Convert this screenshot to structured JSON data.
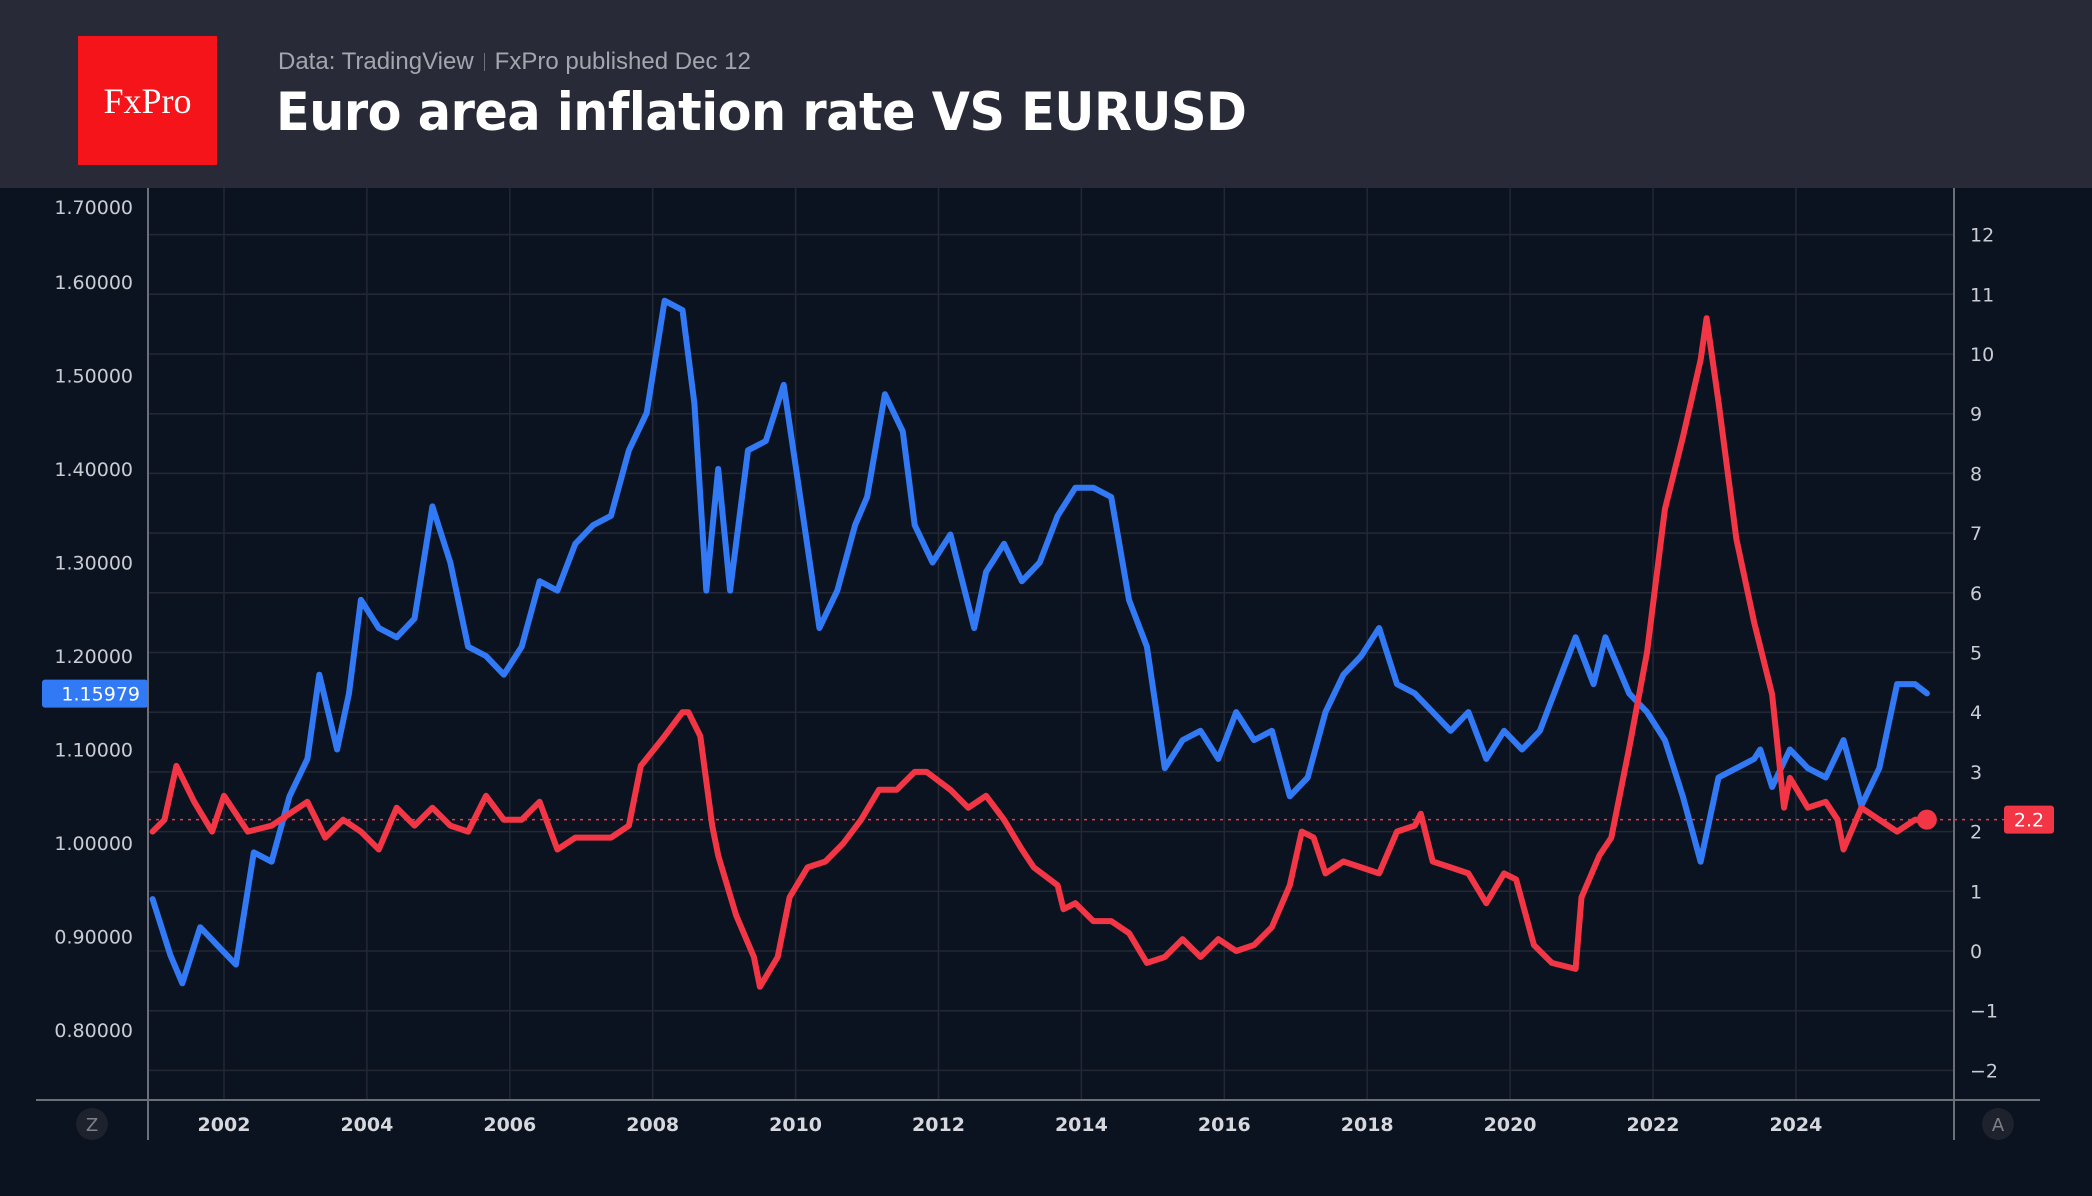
{
  "header": {
    "logo_text": "FxPro",
    "source": "Data: TradingView",
    "published": "FxPro published Dec 12",
    "title": "Euro area inflation rate VS EURUSD"
  },
  "controls": {
    "left_scale_button": "Z",
    "right_scale_button": "A"
  },
  "colors": {
    "eurusd": "#3179f5",
    "inflation": "#f23645",
    "background": "#0c1320",
    "header": "#282b37",
    "logo": "#f5141a"
  },
  "chart_data": {
    "type": "line",
    "title": "Euro area inflation rate VS EURUSD",
    "x_ticks": [
      "2002",
      "2004",
      "2006",
      "2008",
      "2010",
      "2012",
      "2014",
      "2016",
      "2018",
      "2020",
      "2022",
      "2024"
    ],
    "left_axis": {
      "ticks": [
        "0.80000",
        "0.90000",
        "1.00000",
        "1.10000",
        "1.20000",
        "1.30000",
        "1.40000",
        "1.50000",
        "1.60000",
        "1.70000"
      ],
      "range": [
        0.73,
        1.73
      ]
    },
    "right_axis": {
      "ticks": [
        "-2",
        "-1",
        "0",
        "1",
        "2",
        "3",
        "4",
        "5",
        "6",
        "7",
        "8",
        "9",
        "10",
        "11",
        "12"
      ],
      "range": [
        -2.5,
        12.8
      ]
    },
    "grid": true,
    "last_values": {
      "eurusd": "1.15979",
      "inflation": "2.2"
    },
    "series": [
      {
        "key": "eurusd",
        "axis": "left",
        "color": "#3179f5",
        "points": [
          [
            "2001-01",
            0.94
          ],
          [
            "2001-04",
            0.88
          ],
          [
            "2001-06",
            0.85
          ],
          [
            "2001-09",
            0.91
          ],
          [
            "2001-12",
            0.89
          ],
          [
            "2002-03",
            0.87
          ],
          [
            "2002-06",
            0.99
          ],
          [
            "2002-09",
            0.98
          ],
          [
            "2002-12",
            1.05
          ],
          [
            "2003-03",
            1.09
          ],
          [
            "2003-05",
            1.18
          ],
          [
            "2003-08",
            1.1
          ],
          [
            "2003-10",
            1.16
          ],
          [
            "2003-12",
            1.26
          ],
          [
            "2004-03",
            1.23
          ],
          [
            "2004-06",
            1.22
          ],
          [
            "2004-09",
            1.24
          ],
          [
            "2004-12",
            1.36
          ],
          [
            "2005-03",
            1.3
          ],
          [
            "2005-06",
            1.21
          ],
          [
            "2005-09",
            1.2
          ],
          [
            "2005-12",
            1.18
          ],
          [
            "2006-03",
            1.21
          ],
          [
            "2006-06",
            1.28
          ],
          [
            "2006-09",
            1.27
          ],
          [
            "2006-12",
            1.32
          ],
          [
            "2007-03",
            1.34
          ],
          [
            "2007-06",
            1.35
          ],
          [
            "2007-09",
            1.42
          ],
          [
            "2007-12",
            1.46
          ],
          [
            "2008-03",
            1.58
          ],
          [
            "2008-06",
            1.57
          ],
          [
            "2008-08",
            1.47
          ],
          [
            "2008-10",
            1.27
          ],
          [
            "2008-12",
            1.4
          ],
          [
            "2009-02",
            1.27
          ],
          [
            "2009-05",
            1.42
          ],
          [
            "2009-08",
            1.43
          ],
          [
            "2009-11",
            1.49
          ],
          [
            "2010-02",
            1.36
          ],
          [
            "2010-05",
            1.23
          ],
          [
            "2010-08",
            1.27
          ],
          [
            "2010-11",
            1.34
          ],
          [
            "2011-01",
            1.37
          ],
          [
            "2011-04",
            1.48
          ],
          [
            "2011-07",
            1.44
          ],
          [
            "2011-09",
            1.34
          ],
          [
            "2011-12",
            1.3
          ],
          [
            "2012-03",
            1.33
          ],
          [
            "2012-07",
            1.23
          ],
          [
            "2012-09",
            1.29
          ],
          [
            "2012-12",
            1.32
          ],
          [
            "2013-03",
            1.28
          ],
          [
            "2013-06",
            1.3
          ],
          [
            "2013-09",
            1.35
          ],
          [
            "2013-12",
            1.38
          ],
          [
            "2014-03",
            1.38
          ],
          [
            "2014-06",
            1.37
          ],
          [
            "2014-09",
            1.26
          ],
          [
            "2014-12",
            1.21
          ],
          [
            "2015-03",
            1.08
          ],
          [
            "2015-06",
            1.11
          ],
          [
            "2015-09",
            1.12
          ],
          [
            "2015-12",
            1.09
          ],
          [
            "2016-03",
            1.14
          ],
          [
            "2016-06",
            1.11
          ],
          [
            "2016-09",
            1.12
          ],
          [
            "2016-12",
            1.05
          ],
          [
            "2017-03",
            1.07
          ],
          [
            "2017-06",
            1.14
          ],
          [
            "2017-09",
            1.18
          ],
          [
            "2017-12",
            1.2
          ],
          [
            "2018-03",
            1.23
          ],
          [
            "2018-06",
            1.17
          ],
          [
            "2018-09",
            1.16
          ],
          [
            "2018-12",
            1.14
          ],
          [
            "2019-03",
            1.12
          ],
          [
            "2019-06",
            1.14
          ],
          [
            "2019-09",
            1.09
          ],
          [
            "2019-12",
            1.12
          ],
          [
            "2020-03",
            1.1
          ],
          [
            "2020-06",
            1.12
          ],
          [
            "2020-09",
            1.17
          ],
          [
            "2020-12",
            1.22
          ],
          [
            "2021-03",
            1.17
          ],
          [
            "2021-05",
            1.22
          ],
          [
            "2021-09",
            1.16
          ],
          [
            "2021-12",
            1.14
          ],
          [
            "2022-03",
            1.11
          ],
          [
            "2022-06",
            1.05
          ],
          [
            "2022-09",
            0.98
          ],
          [
            "2022-12",
            1.07
          ],
          [
            "2023-03",
            1.08
          ],
          [
            "2023-06",
            1.09
          ],
          [
            "2023-07",
            1.1
          ],
          [
            "2023-09",
            1.06
          ],
          [
            "2023-12",
            1.1
          ],
          [
            "2024-03",
            1.08
          ],
          [
            "2024-06",
            1.07
          ],
          [
            "2024-09",
            1.11
          ],
          [
            "2024-12",
            1.04
          ],
          [
            "2025-03",
            1.08
          ],
          [
            "2025-06",
            1.17
          ],
          [
            "2025-09",
            1.17
          ],
          [
            "2025-11",
            1.16
          ]
        ]
      },
      {
        "key": "inflation",
        "axis": "right",
        "color": "#f23645",
        "points": [
          [
            "2001-01",
            2.0
          ],
          [
            "2001-03",
            2.2
          ],
          [
            "2001-05",
            3.1
          ],
          [
            "2001-08",
            2.5
          ],
          [
            "2001-11",
            2.0
          ],
          [
            "2002-01",
            2.6
          ],
          [
            "2002-05",
            2.0
          ],
          [
            "2002-09",
            2.1
          ],
          [
            "2002-12",
            2.3
          ],
          [
            "2003-03",
            2.5
          ],
          [
            "2003-06",
            1.9
          ],
          [
            "2003-09",
            2.2
          ],
          [
            "2003-12",
            2.0
          ],
          [
            "2004-03",
            1.7
          ],
          [
            "2004-06",
            2.4
          ],
          [
            "2004-09",
            2.1
          ],
          [
            "2004-12",
            2.4
          ],
          [
            "2005-03",
            2.1
          ],
          [
            "2005-06",
            2.0
          ],
          [
            "2005-09",
            2.6
          ],
          [
            "2005-12",
            2.2
          ],
          [
            "2006-03",
            2.2
          ],
          [
            "2006-06",
            2.5
          ],
          [
            "2006-09",
            1.7
          ],
          [
            "2006-12",
            1.9
          ],
          [
            "2007-03",
            1.9
          ],
          [
            "2007-06",
            1.9
          ],
          [
            "2007-09",
            2.1
          ],
          [
            "2007-11",
            3.1
          ],
          [
            "2008-03",
            3.6
          ],
          [
            "2008-06",
            4.0
          ],
          [
            "2008-07",
            4.0
          ],
          [
            "2008-09",
            3.6
          ],
          [
            "2008-11",
            2.1
          ],
          [
            "2008-12",
            1.6
          ],
          [
            "2009-03",
            0.6
          ],
          [
            "2009-06",
            -0.1
          ],
          [
            "2009-07",
            -0.6
          ],
          [
            "2009-10",
            -0.1
          ],
          [
            "2009-12",
            0.9
          ],
          [
            "2010-03",
            1.4
          ],
          [
            "2010-06",
            1.5
          ],
          [
            "2010-09",
            1.8
          ],
          [
            "2010-12",
            2.2
          ],
          [
            "2011-03",
            2.7
          ],
          [
            "2011-06",
            2.7
          ],
          [
            "2011-09",
            3.0
          ],
          [
            "2011-11",
            3.0
          ],
          [
            "2012-03",
            2.7
          ],
          [
            "2012-06",
            2.4
          ],
          [
            "2012-09",
            2.6
          ],
          [
            "2012-12",
            2.2
          ],
          [
            "2013-03",
            1.7
          ],
          [
            "2013-05",
            1.4
          ],
          [
            "2013-09",
            1.1
          ],
          [
            "2013-10",
            0.7
          ],
          [
            "2013-12",
            0.8
          ],
          [
            "2014-03",
            0.5
          ],
          [
            "2014-06",
            0.5
          ],
          [
            "2014-09",
            0.3
          ],
          [
            "2014-12",
            -0.2
          ],
          [
            "2015-03",
            -0.1
          ],
          [
            "2015-06",
            0.2
          ],
          [
            "2015-09",
            -0.1
          ],
          [
            "2015-12",
            0.2
          ],
          [
            "2016-03",
            0.0
          ],
          [
            "2016-06",
            0.1
          ],
          [
            "2016-09",
            0.4
          ],
          [
            "2016-12",
            1.1
          ],
          [
            "2017-02",
            2.0
          ],
          [
            "2017-04",
            1.9
          ],
          [
            "2017-06",
            1.3
          ],
          [
            "2017-09",
            1.5
          ],
          [
            "2017-12",
            1.4
          ],
          [
            "2018-03",
            1.3
          ],
          [
            "2018-06",
            2.0
          ],
          [
            "2018-09",
            2.1
          ],
          [
            "2018-10",
            2.3
          ],
          [
            "2018-12",
            1.5
          ],
          [
            "2019-03",
            1.4
          ],
          [
            "2019-06",
            1.3
          ],
          [
            "2019-09",
            0.8
          ],
          [
            "2019-12",
            1.3
          ],
          [
            "2020-02",
            1.2
          ],
          [
            "2020-05",
            0.1
          ],
          [
            "2020-08",
            -0.2
          ],
          [
            "2020-12",
            -0.3
          ],
          [
            "2021-01",
            0.9
          ],
          [
            "2021-04",
            1.6
          ],
          [
            "2021-06",
            1.9
          ],
          [
            "2021-09",
            3.4
          ],
          [
            "2021-12",
            5.0
          ],
          [
            "2022-03",
            7.4
          ],
          [
            "2022-06",
            8.6
          ],
          [
            "2022-09",
            9.9
          ],
          [
            "2022-10",
            10.6
          ],
          [
            "2022-12",
            9.2
          ],
          [
            "2023-03",
            6.9
          ],
          [
            "2023-06",
            5.5
          ],
          [
            "2023-09",
            4.3
          ],
          [
            "2023-11",
            2.4
          ],
          [
            "2023-12",
            2.9
          ],
          [
            "2024-03",
            2.4
          ],
          [
            "2024-06",
            2.5
          ],
          [
            "2024-08",
            2.2
          ],
          [
            "2024-09",
            1.7
          ],
          [
            "2024-12",
            2.4
          ],
          [
            "2025-03",
            2.2
          ],
          [
            "2025-06",
            2.0
          ],
          [
            "2025-09",
            2.2
          ],
          [
            "2025-11",
            2.2
          ]
        ]
      }
    ]
  }
}
